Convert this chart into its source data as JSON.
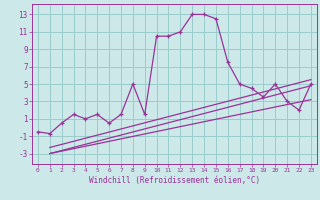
{
  "xlabel": "Windchill (Refroidissement éolien,°C)",
  "bg_color": "#cce8e8",
  "grid_color": "#99cccc",
  "line_color": "#993399",
  "xlim": [
    -0.5,
    23.5
  ],
  "ylim": [
    -4.2,
    14.2
  ],
  "xticks": [
    0,
    1,
    2,
    3,
    4,
    5,
    6,
    7,
    8,
    9,
    10,
    11,
    12,
    13,
    14,
    15,
    16,
    17,
    18,
    19,
    20,
    21,
    22,
    23
  ],
  "yticks": [
    -3,
    -1,
    1,
    3,
    5,
    7,
    9,
    11,
    13
  ],
  "main_x": [
    0,
    1,
    2,
    3,
    4,
    5,
    6,
    7,
    8,
    9,
    10,
    11,
    12,
    13,
    14,
    15,
    16,
    17,
    18,
    19,
    20,
    21,
    22,
    23
  ],
  "main_y": [
    -0.5,
    -0.7,
    0.5,
    1.5,
    1.0,
    1.5,
    0.5,
    1.5,
    5.0,
    1.5,
    10.5,
    10.5,
    11.0,
    13.0,
    13.0,
    12.5,
    7.5,
    5.0,
    4.5,
    3.5,
    5.0,
    3.0,
    2.0,
    5.0
  ],
  "line1_x": [
    1,
    23
  ],
  "line1_y": [
    -3.0,
    4.8
  ],
  "line2_x": [
    1,
    23
  ],
  "line2_y": [
    -3.0,
    3.2
  ],
  "line3_x": [
    1,
    23
  ],
  "line3_y": [
    -2.3,
    5.5
  ]
}
